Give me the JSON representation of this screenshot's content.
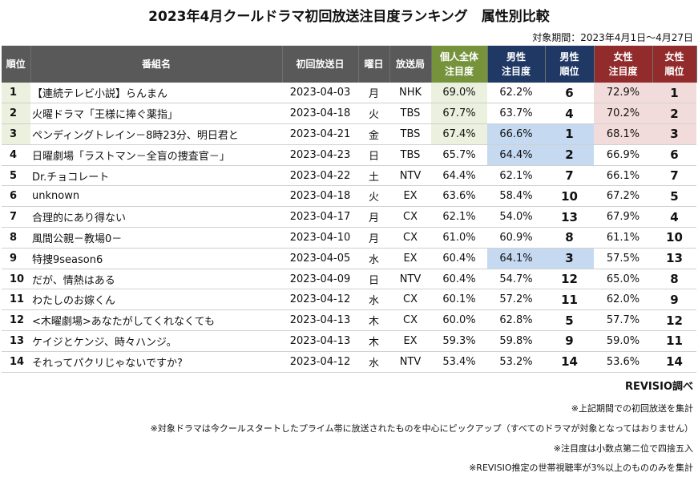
{
  "chart_data": {
    "type": "table",
    "title": "2023年4月クールドラマ初回放送注目度ランキング　属性別比較",
    "period_note": "対象期間：2023年4月1日～4月27日",
    "columns": [
      "順位",
      "番組名",
      "初回放送日",
      "曜日",
      "放送局",
      "個人全体注目度",
      "男性注目度",
      "男性順位",
      "女性注目度",
      "女性順位"
    ],
    "header": {
      "rank": "順位",
      "program": "番組名",
      "first_air": "初回放送日",
      "weekday": "曜日",
      "station": "放送局",
      "all_1": "個人全体",
      "all_2": "注目度",
      "male_1": "男性",
      "male_2": "注目度",
      "male_rank_1": "男性",
      "male_rank_2": "順位",
      "female_1": "女性",
      "female_2": "注目度",
      "female_rank_1": "女性",
      "female_rank_2": "順位"
    },
    "rows": [
      {
        "rank": "1",
        "title": "【連続テレビ小説】らんまん",
        "date": "2023-04-03",
        "day": "月",
        "station": "NHK",
        "all": "69.0%",
        "male": "62.2%",
        "male_rank": "6",
        "female": "72.9%",
        "female_rank": "1"
      },
      {
        "rank": "2",
        "title": "火曜ドラマ「王様に捧ぐ薬指」",
        "date": "2023-04-18",
        "day": "火",
        "station": "TBS",
        "all": "67.7%",
        "male": "63.7%",
        "male_rank": "4",
        "female": "70.2%",
        "female_rank": "2"
      },
      {
        "rank": "3",
        "title": "ペンディングトレイン－8時23分、明日君と",
        "date": "2023-04-21",
        "day": "金",
        "station": "TBS",
        "all": "67.4%",
        "male": "66.6%",
        "male_rank": "1",
        "female": "68.1%",
        "female_rank": "3"
      },
      {
        "rank": "4",
        "title": "日曜劇場「ラストマン－全盲の捜査官－」",
        "date": "2023-04-23",
        "day": "日",
        "station": "TBS",
        "all": "65.7%",
        "male": "64.4%",
        "male_rank": "2",
        "female": "66.9%",
        "female_rank": "6"
      },
      {
        "rank": "5",
        "title": "Dr.チョコレート",
        "date": "2023-04-22",
        "day": "土",
        "station": "NTV",
        "all": "64.4%",
        "male": "62.1%",
        "male_rank": "7",
        "female": "66.1%",
        "female_rank": "7"
      },
      {
        "rank": "6",
        "title": "unknown",
        "date": "2023-04-18",
        "day": "火",
        "station": "EX",
        "all": "63.6%",
        "male": "58.4%",
        "male_rank": "10",
        "female": "67.2%",
        "female_rank": "5"
      },
      {
        "rank": "7",
        "title": "合理的にあり得ない",
        "date": "2023-04-17",
        "day": "月",
        "station": "CX",
        "all": "62.1%",
        "male": "54.0%",
        "male_rank": "13",
        "female": "67.9%",
        "female_rank": "4"
      },
      {
        "rank": "8",
        "title": "風間公親－教場0－",
        "date": "2023-04-10",
        "day": "月",
        "station": "CX",
        "all": "61.0%",
        "male": "60.9%",
        "male_rank": "8",
        "female": "61.1%",
        "female_rank": "10"
      },
      {
        "rank": "9",
        "title": "特捜9season6",
        "date": "2023-04-05",
        "day": "水",
        "station": "EX",
        "all": "60.4%",
        "male": "64.1%",
        "male_rank": "3",
        "female": "57.5%",
        "female_rank": "13"
      },
      {
        "rank": "10",
        "title": "だが、情熱はある",
        "date": "2023-04-09",
        "day": "日",
        "station": "NTV",
        "all": "60.4%",
        "male": "54.7%",
        "male_rank": "12",
        "female": "65.0%",
        "female_rank": "8"
      },
      {
        "rank": "11",
        "title": "わたしのお嫁くん",
        "date": "2023-04-12",
        "day": "水",
        "station": "CX",
        "all": "60.1%",
        "male": "57.2%",
        "male_rank": "11",
        "female": "62.0%",
        "female_rank": "9"
      },
      {
        "rank": "12",
        "title": "<木曜劇場>あなたがしてくれなくても",
        "date": "2023-04-13",
        "day": "木",
        "station": "CX",
        "all": "60.0%",
        "male": "62.8%",
        "male_rank": "5",
        "female": "57.7%",
        "female_rank": "12"
      },
      {
        "rank": "13",
        "title": "ケイジとケンジ、時々ハンジ。",
        "date": "2023-04-13",
        "day": "木",
        "station": "EX",
        "all": "59.3%",
        "male": "59.8%",
        "male_rank": "9",
        "female": "59.0%",
        "female_rank": "11"
      },
      {
        "rank": "14",
        "title": "それってパクリじゃないですか?",
        "date": "2023-04-12",
        "day": "水",
        "station": "NTV",
        "all": "53.4%",
        "male": "53.2%",
        "male_rank": "14",
        "female": "53.6%",
        "female_rank": "14"
      }
    ],
    "highlight_colors": {
      "top_all": "#ebf1de",
      "top_male": "#c5d9f1",
      "top_female": "#f2dcdb"
    },
    "source": "REVISIO調べ",
    "notes": [
      "※上記期間での初回放送を集計",
      "※対象ドラマは今クールスタートしたプライム帯に放送されたものを中心にピックアップ（すべてのドラマが対象となってはおりません）",
      "※注目度は小数点第二位で四捨五入",
      "※REVISIO推定の世帯視聴率が3%以上のもののみを集計"
    ]
  }
}
